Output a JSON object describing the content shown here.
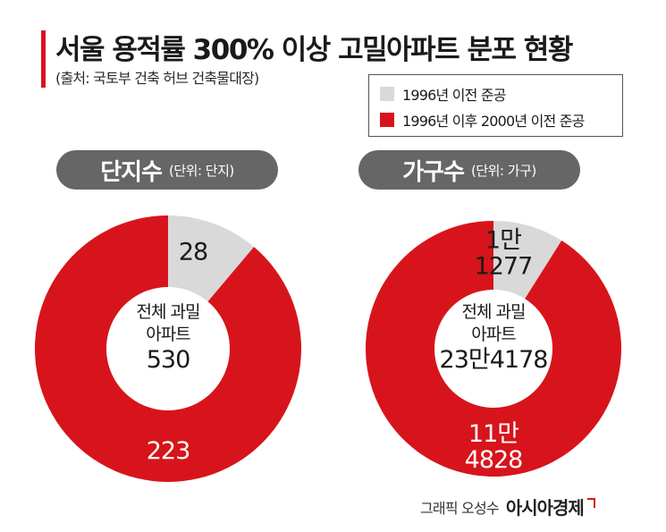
{
  "header": {
    "title": "서울 용적률 300% 이상 고밀아파트 분포 현황",
    "source": "(출처: 국토부 건축 허브 건축물대장)"
  },
  "legend": {
    "items": [
      {
        "label": "1996년 이전 준공",
        "color": "#d9d9d9"
      },
      {
        "label": "1996년 이후 2000년 이전 준공",
        "color": "#d7141b"
      }
    ]
  },
  "panels": [
    {
      "title": "단지수",
      "unit": "(단위: 단지)"
    },
    {
      "title": "가구수",
      "unit": "(단위: 가구)"
    }
  ],
  "chart_data": [
    {
      "type": "pie",
      "title": "단지수",
      "categories": [
        "1996년 이전 준공",
        "1996년 이후 2000년 이전 준공"
      ],
      "values": [
        28,
        223
      ],
      "value_labels": [
        "28",
        "223"
      ],
      "center_label": [
        "전체 과밀",
        "아파트",
        "530"
      ],
      "colors": [
        "#d9d9d9",
        "#d7141b"
      ]
    },
    {
      "type": "pie",
      "title": "가구수",
      "categories": [
        "1996년 이전 준공",
        "1996년 이후 2000년 이전 준공"
      ],
      "values": [
        11277,
        114828
      ],
      "value_labels": [
        [
          "1만",
          "1277"
        ],
        [
          "11만",
          "4828"
        ]
      ],
      "center_label": [
        "전체 과밀",
        "아파트",
        "23만4178"
      ],
      "colors": [
        "#d9d9d9",
        "#d7141b"
      ]
    }
  ],
  "credit": {
    "by": "그래픽 오성수",
    "brand": "아시아경제"
  }
}
